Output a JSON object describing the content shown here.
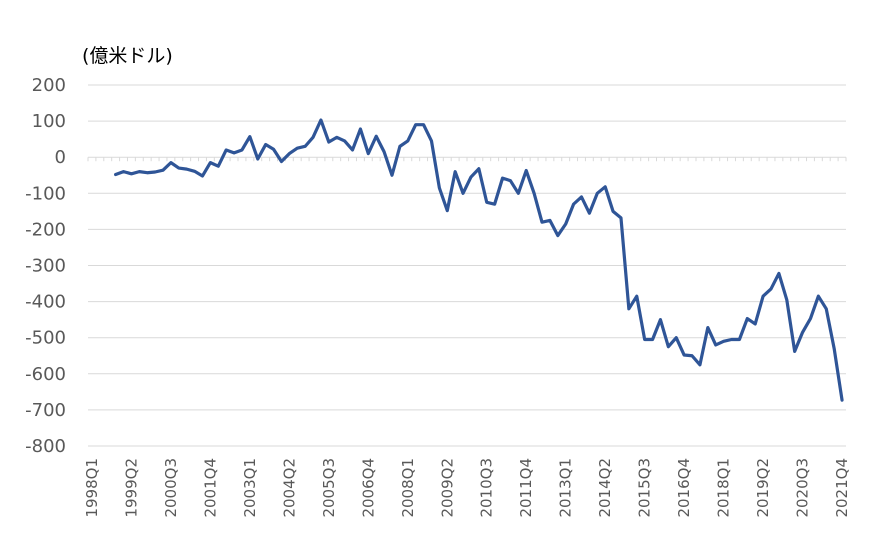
{
  "chart_data": {
    "type": "line",
    "unit_label": "(億米ドル)",
    "ylim": [
      -800,
      200
    ],
    "yticks": [
      "200",
      "100",
      "0",
      "-100",
      "-200",
      "-300",
      "-400",
      "-500",
      "-600",
      "-700",
      "-800"
    ],
    "xtick_labels": [
      "1998Q1",
      "1999Q2",
      "2000Q3",
      "2001Q4",
      "2003Q1",
      "2004Q2",
      "2005Q3",
      "2006Q4",
      "2008Q1",
      "2009Q2",
      "2010Q3",
      "2011Q4",
      "2013Q1",
      "2014Q2",
      "2015Q3",
      "2016Q4",
      "2018Q1",
      "2019Q2",
      "2020Q3",
      "2021Q4"
    ],
    "grid": true,
    "legend": "none",
    "color": "#2f5597",
    "series": [
      {
        "x_start": "1998Q1",
        "x_end": "2021Q4",
        "values": [
          null,
          null,
          null,
          -48,
          -40,
          -46,
          -40,
          -43,
          -41,
          -36,
          -15,
          -30,
          -33,
          -39,
          -52,
          -15,
          -25,
          20,
          12,
          20,
          57,
          -5,
          35,
          22,
          -12,
          10,
          25,
          30,
          55,
          103,
          42,
          55,
          45,
          20,
          78,
          10,
          58,
          15,
          -50,
          30,
          45,
          90,
          90,
          45,
          -85,
          -148,
          -40,
          -100,
          -55,
          -32,
          -125,
          -130,
          -58,
          -65,
          -100,
          -37,
          -100,
          -180,
          -175,
          -217,
          -185,
          -130,
          -110,
          -155,
          -100,
          -82,
          -150,
          -168,
          -420,
          -385,
          -505,
          -505,
          -450,
          -525,
          -500,
          -548,
          -550,
          -575,
          -472,
          -520,
          -510,
          -505,
          -505,
          -447,
          -462,
          -385,
          -365,
          -322,
          -395,
          -538,
          -485,
          -447,
          -385,
          -420,
          -530,
          -673
        ]
      }
    ]
  }
}
